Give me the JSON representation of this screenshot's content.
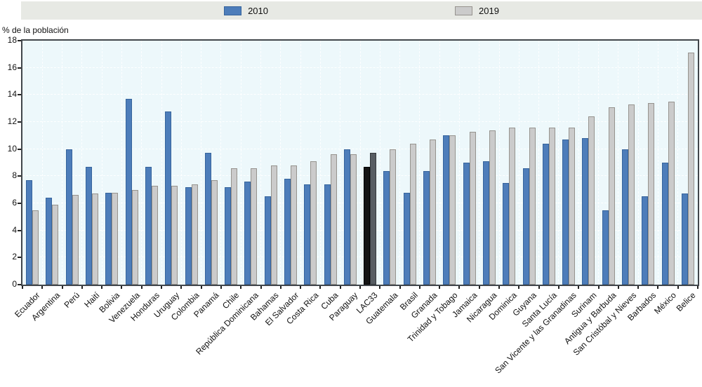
{
  "y_axis_title": "% de la población",
  "legend": {
    "items": [
      {
        "label": "2010",
        "color": "#4d7dba",
        "border": "#36649c"
      },
      {
        "label": "2019",
        "color": "#cbcbcb",
        "border": "#96938e"
      }
    ]
  },
  "chart_data": {
    "type": "bar",
    "title": "",
    "xlabel": "",
    "ylabel": "% de la población",
    "ylim": [
      0,
      18
    ],
    "ytick_step": 2,
    "yticks": [
      0,
      2,
      4,
      6,
      8,
      10,
      12,
      14,
      16,
      18
    ],
    "grid": "white dashed horizontal and vertical on pale blue background",
    "legend_position": "top",
    "plot_bg": "#edf8fb",
    "categories": [
      "Ecuador",
      "Argentina",
      "Perú",
      "Haití",
      "Bolivia",
      "Venezuela",
      "Honduras",
      "Uruguay",
      "Colombia",
      "Panamá",
      "Chile",
      "República Dominicana",
      "Bahamas",
      "El Salvador",
      "Costa Rica",
      "Cuba",
      "Paraguay",
      "LAC33",
      "Guatemala",
      "Brasil",
      "Granada",
      "Trinidad y Tobago",
      "Jamaica",
      "Nicaragua",
      "Dominica",
      "Guyana",
      "Santa Lucía",
      "San Vicente y las Granadinas",
      "Surinam",
      "Antigua y Barbuda",
      "San Cristóbal y Nieves",
      "Barbados",
      "México",
      "Belice"
    ],
    "series": [
      {
        "name": "2010",
        "color": "#4d7dba",
        "border": "#36649c",
        "values": [
          7.7,
          6.4,
          10.0,
          8.7,
          6.8,
          13.7,
          8.7,
          12.8,
          7.2,
          9.7,
          7.2,
          7.6,
          6.5,
          7.8,
          7.4,
          7.4,
          10.0,
          8.7,
          8.4,
          6.8,
          8.4,
          11.0,
          9.0,
          9.1,
          7.5,
          8.6,
          10.4,
          10.7,
          10.8,
          5.5,
          10.0,
          6.5,
          9.0,
          6.7
        ]
      },
      {
        "name": "2019",
        "color": "#cbcbcb",
        "border": "#96938e",
        "values": [
          5.5,
          5.9,
          6.6,
          6.7,
          6.8,
          7.0,
          7.3,
          7.3,
          7.4,
          7.7,
          8.6,
          8.6,
          8.8,
          8.8,
          9.1,
          9.6,
          9.6,
          9.7,
          10.0,
          10.4,
          10.7,
          11.0,
          11.3,
          11.4,
          11.6,
          11.6,
          11.6,
          11.6,
          12.4,
          13.1,
          13.3,
          13.4,
          13.5,
          17.1
        ]
      }
    ],
    "highlight": {
      "category": "LAC33",
      "index": 17,
      "colors": [
        "#151515",
        "#575d63"
      ],
      "borders": [
        "#000000",
        "#33383c"
      ]
    }
  }
}
